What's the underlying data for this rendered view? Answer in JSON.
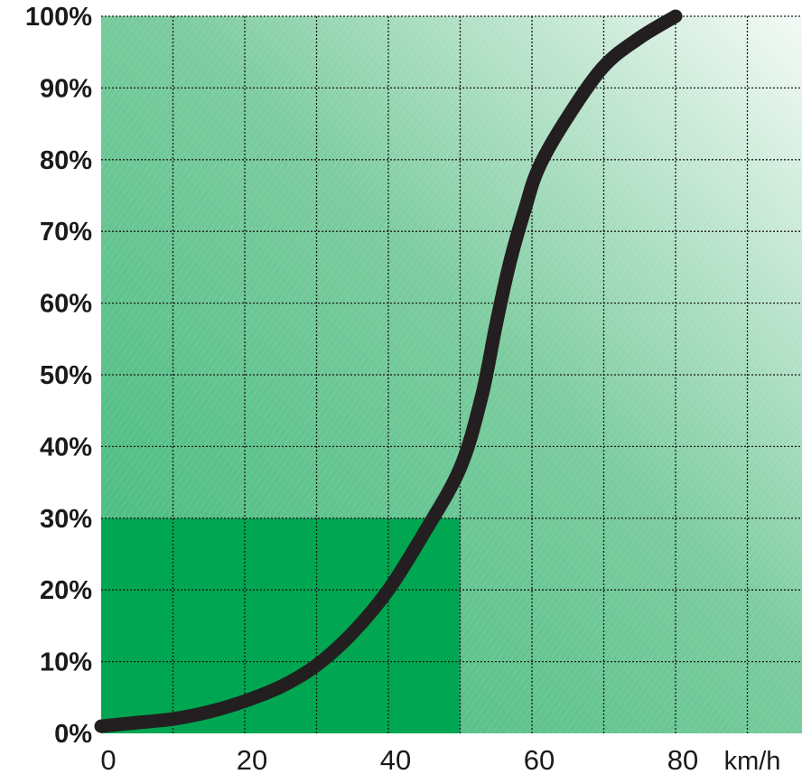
{
  "chart_data": {
    "type": "line",
    "title": "",
    "xlabel": "km/h",
    "ylabel": "",
    "xlim": [
      0,
      97
    ],
    "ylim": [
      0,
      100
    ],
    "x_ticks": [
      0,
      20,
      40,
      60,
      80
    ],
    "x_tick_labels": [
      "0",
      "20",
      "40",
      "60",
      "80"
    ],
    "x_unit_label": "km/h",
    "y_ticks": [
      0,
      10,
      20,
      30,
      40,
      50,
      60,
      70,
      80,
      90,
      100
    ],
    "y_tick_labels": [
      "0%",
      "10%",
      "20%",
      "30%",
      "40%",
      "50%",
      "60%",
      "70%",
      "80%",
      "90%",
      "100%"
    ],
    "grid": true,
    "highlight_region": {
      "x": [
        0,
        50
      ],
      "y": [
        0,
        30
      ]
    },
    "series": [
      {
        "x": [
          0,
          5,
          10,
          15,
          20,
          25,
          30,
          35,
          40,
          45,
          50,
          53,
          55,
          57,
          59,
          61,
          65,
          70,
          75,
          80
        ],
        "y": [
          1,
          1.5,
          2,
          3,
          4.5,
          6.5,
          9.5,
          14,
          20,
          28,
          37,
          47,
          57,
          66,
          73,
          79,
          86,
          93,
          97,
          100
        ]
      }
    ],
    "colors": {
      "curve": "#231f20",
      "highlight": "#00a651",
      "gradient_dark": "#3cb878",
      "gradient_light": "#f4faf6",
      "grid": "#1a1a1a"
    }
  }
}
